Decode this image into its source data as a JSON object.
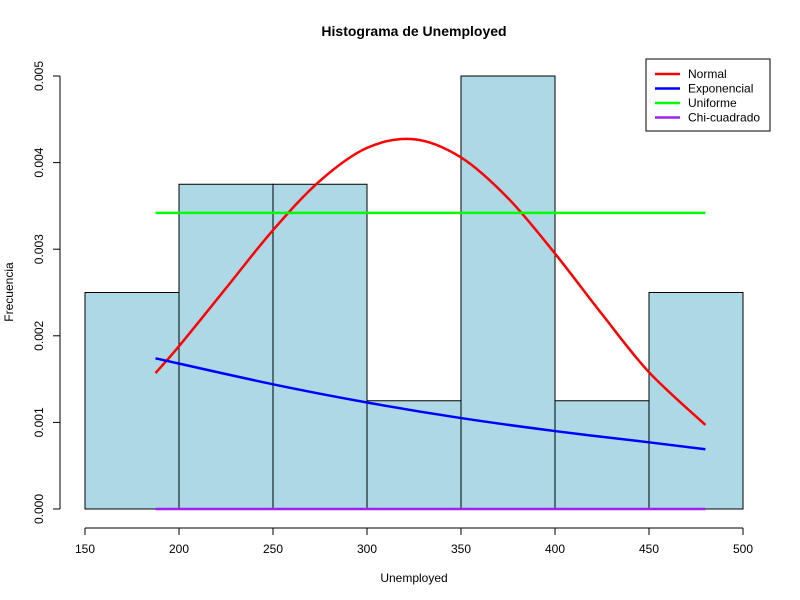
{
  "chart_data": {
    "type": "bar",
    "title": "Histograma de Unemployed",
    "xlabel": "Unemployed",
    "ylabel": "Frecuencia",
    "xlim": [
      150,
      500
    ],
    "ylim": [
      0,
      0.005
    ],
    "x_ticks": [
      "150",
      "200",
      "250",
      "300",
      "350",
      "400",
      "450",
      "500"
    ],
    "y_ticks": [
      "0.000",
      "0.001",
      "0.002",
      "0.003",
      "0.004",
      "0.005"
    ],
    "bar_color": "#ADD8E6",
    "bins": [
      {
        "from": 150,
        "to": 200,
        "value": 0.0025
      },
      {
        "from": 200,
        "to": 250,
        "value": 0.00375
      },
      {
        "from": 250,
        "to": 300,
        "value": 0.00375
      },
      {
        "from": 300,
        "to": 350,
        "value": 0.00125
      },
      {
        "from": 350,
        "to": 400,
        "value": 0.005
      },
      {
        "from": 400,
        "to": 450,
        "value": 0.00125
      },
      {
        "from": 450,
        "to": 500,
        "value": 0.0025
      }
    ],
    "series": [
      {
        "name": "Normal",
        "color": "#FF0000",
        "x": [
          187.5,
          200,
          225,
          250,
          275,
          300,
          325,
          350,
          375,
          400,
          425,
          450,
          480
        ],
        "values": [
          0.00157,
          0.00188,
          0.00255,
          0.00322,
          0.00379,
          0.00417,
          0.00427,
          0.00406,
          0.00359,
          0.00295,
          0.00225,
          0.00158,
          0.00097
        ]
      },
      {
        "name": "Exponencial",
        "color": "#0000FF",
        "x": [
          187.5,
          250,
          300,
          350,
          400,
          450,
          480
        ],
        "values": [
          0.00174,
          0.00144,
          0.00123,
          0.00105,
          0.0009,
          0.00077,
          0.00069
        ]
      },
      {
        "name": "Uniforme",
        "color": "#00FF00",
        "x": [
          187.5,
          480
        ],
        "values": [
          0.00342,
          0.00342
        ]
      },
      {
        "name": "Chi-cuadrado",
        "color": "#A020F0",
        "x": [
          187.5,
          480
        ],
        "values": [
          0.0,
          0.0
        ]
      }
    ],
    "legend_position": "top-right",
    "grid": false
  }
}
